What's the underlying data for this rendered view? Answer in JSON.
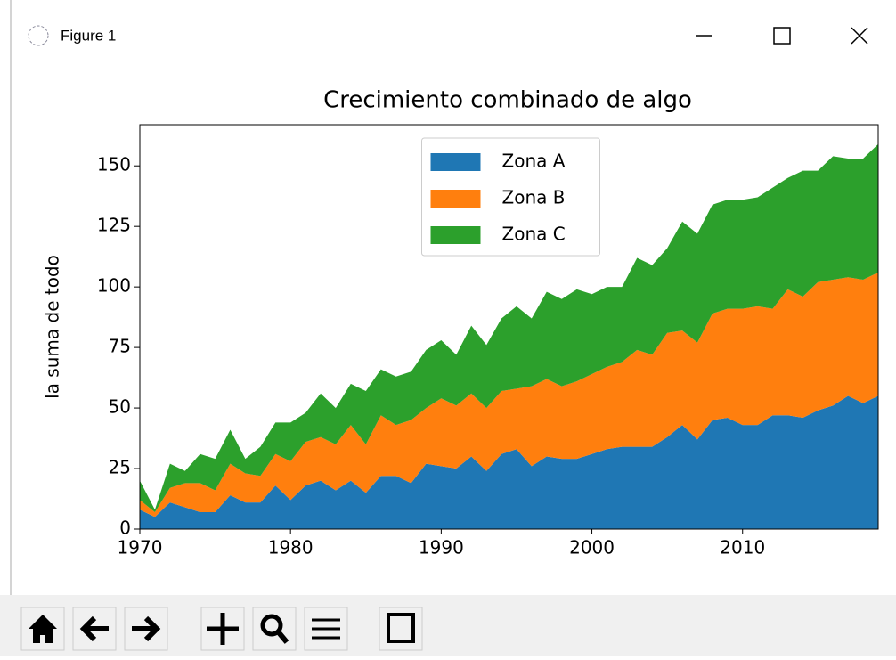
{
  "window_title": "Figure 1",
  "chart_data": {
    "type": "stackplot",
    "title": "Crecimiento combinado de algo",
    "ylabel": "la suma de todo",
    "x": [
      1970,
      1971,
      1972,
      1973,
      1974,
      1975,
      1976,
      1977,
      1978,
      1979,
      1980,
      1981,
      1982,
      1983,
      1984,
      1985,
      1986,
      1987,
      1988,
      1989,
      1990,
      1991,
      1992,
      1993,
      1994,
      1995,
      1996,
      1997,
      1998,
      1999,
      2000,
      2001,
      2002,
      2003,
      2004,
      2005,
      2006,
      2007,
      2008,
      2009,
      2010,
      2011,
      2012,
      2013,
      2014,
      2015,
      2016,
      2017,
      2018,
      2019
    ],
    "series": [
      {
        "name": "Zona A",
        "color": "#1f77b4",
        "values": [
          8,
          5,
          11,
          9,
          7,
          7,
          14,
          11,
          11,
          18,
          12,
          18,
          20,
          16,
          20,
          15,
          22,
          22,
          19,
          27,
          26,
          25,
          30,
          24,
          31,
          33,
          26,
          30,
          29,
          29,
          31,
          33,
          34,
          34,
          34,
          38,
          43,
          37,
          45,
          46,
          43,
          43,
          47,
          47,
          46,
          49,
          51,
          55,
          52,
          55
        ]
      },
      {
        "name": "Zona B",
        "color": "#ff7f0e",
        "values": [
          4,
          2,
          6,
          10,
          12,
          9,
          13,
          12,
          11,
          13,
          16,
          18,
          18,
          19,
          23,
          20,
          25,
          21,
          26,
          23,
          28,
          26,
          26,
          26,
          26,
          25,
          33,
          32,
          30,
          32,
          33,
          34,
          35,
          40,
          38,
          43,
          39,
          40,
          44,
          45,
          48,
          49,
          44,
          52,
          50,
          53,
          52,
          49,
          51,
          51
        ]
      },
      {
        "name": "Zona C",
        "color": "#2ca02c",
        "values": [
          8,
          1,
          10,
          5,
          12,
          13,
          14,
          6,
          12,
          13,
          16,
          12,
          18,
          15,
          17,
          22,
          19,
          20,
          20,
          24,
          24,
          21,
          28,
          26,
          30,
          34,
          28,
          36,
          36,
          38,
          33,
          33,
          31,
          38,
          37,
          35,
          45,
          45,
          45,
          45,
          45,
          45,
          50,
          46,
          52,
          46,
          51,
          49,
          50,
          53
        ]
      }
    ],
    "xlim": [
      1970,
      2019
    ],
    "xticks": [
      1970,
      1980,
      1990,
      2000,
      2010
    ],
    "ylim": [
      0,
      167
    ],
    "yticks": [
      0,
      25,
      50,
      75,
      100,
      125,
      150
    ],
    "legend": "upper center"
  }
}
